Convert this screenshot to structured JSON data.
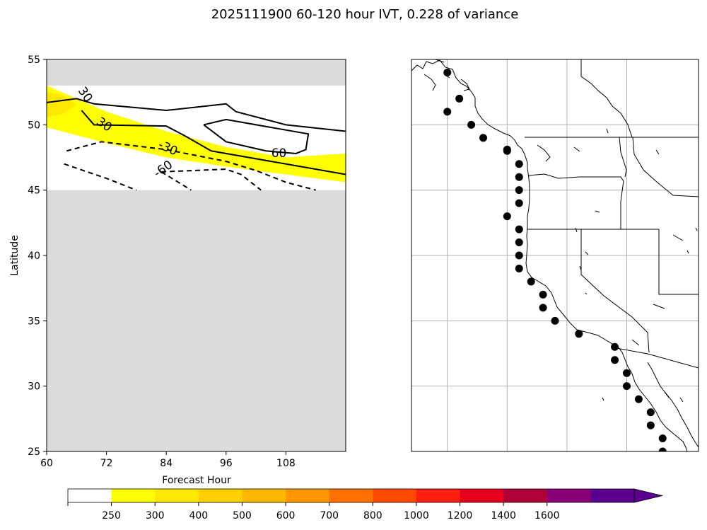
{
  "title": "2025111900 60-120 hour IVT, 0.228 of variance",
  "chart_data": [
    {
      "type": "contour",
      "xlabel": "Forecast Hour",
      "ylabel": "Latitude",
      "xlim": [
        60,
        120
      ],
      "ylim": [
        25,
        55
      ],
      "xticks": [
        60,
        72,
        84,
        96,
        108
      ],
      "yticks": [
        25,
        30,
        35,
        40,
        45,
        50,
        55
      ],
      "valid_lat_range": [
        45,
        53
      ],
      "missing_color": "#dcdcdc",
      "fill_levels": [
        {
          "level": 250,
          "band": [
            [
              60,
              53
            ],
            [
              72,
              51
            ],
            [
              84,
              49.5
            ],
            [
              96,
              48.3
            ],
            [
              108,
              47.5
            ],
            [
              120,
              47.8
            ],
            [
              120,
              45.6
            ],
            [
              108,
              46.2
            ],
            [
              96,
              46.8
            ],
            [
              84,
              47.5
            ],
            [
              72,
              48.6
            ],
            [
              60,
              49.8
            ]
          ]
        },
        {
          "level": 300,
          "band": [
            [
              60,
              52.5
            ],
            [
              63,
              52.3
            ],
            [
              66,
              51.5
            ],
            [
              63,
              50.8
            ],
            [
              60,
              50.6
            ]
          ]
        }
      ],
      "contours": [
        {
          "level": 30,
          "label": "30",
          "style": "solid",
          "points": [
            [
              60,
              51.7
            ],
            [
              66,
              52
            ],
            [
              69.5,
              51.6
            ],
            [
              84,
              51.1
            ],
            [
              96,
              51.6
            ],
            [
              98,
              51
            ],
            [
              108,
              50
            ],
            [
              120,
              49.5
            ]
          ]
        },
        {
          "level": 30,
          "style": "solid",
          "points": [
            [
              67,
              51.1
            ],
            [
              69.5,
              50
            ],
            [
              84,
              49.9
            ],
            [
              88,
              49.1
            ],
            [
              93,
              48
            ]
          ]
        },
        {
          "level": 60,
          "label": "60",
          "style": "solid",
          "points": [
            [
              93,
              48
            ],
            [
              120,
              46.2
            ]
          ]
        },
        {
          "level": 60,
          "style": "solid",
          "points": [
            [
              91.5,
              50
            ],
            [
              96,
              50.4
            ],
            [
              112.5,
              49.3
            ],
            [
              112,
              48.1
            ],
            [
              110,
              47.8
            ],
            [
              104,
              48
            ],
            [
              96,
              48.7
            ],
            [
              91.5,
              50
            ]
          ]
        },
        {
          "level": -30,
          "label": "-30",
          "style": "dashed",
          "points": [
            [
              64,
              48
            ],
            [
              71,
              48.7
            ],
            [
              84,
              48.1
            ],
            [
              96,
              47.2
            ],
            [
              102,
              46.5
            ],
            [
              108,
              45.6
            ],
            [
              114,
              45
            ]
          ]
        },
        {
          "level": -60,
          "label": "-60",
          "style": "dashed",
          "points": [
            [
              63.5,
              47
            ],
            [
              72,
              45.9
            ],
            [
              78,
              45
            ]
          ]
        },
        {
          "level": -60,
          "style": "dashed",
          "points": [
            [
              83,
              46.4
            ],
            [
              96,
              46.6
            ],
            [
              99,
              46.2
            ],
            [
              103,
              45
            ]
          ]
        },
        {
          "level": -60,
          "style": "dashed",
          "points": [
            [
              83,
              46.4
            ],
            [
              89,
              45
            ]
          ]
        }
      ],
      "contour_labels": [
        {
          "text": "30",
          "x": 67.7,
          "y": 52.3,
          "rotation": 55
        },
        {
          "text": "30",
          "x": 71.5,
          "y": 50.0,
          "rotation": 35
        },
        {
          "text": "-30",
          "x": 84.3,
          "y": 48.2,
          "rotation": 25
        },
        {
          "text": "60",
          "x": 106.6,
          "y": 47.8,
          "rotation": 0
        },
        {
          "text": "-60",
          "x": 83.4,
          "y": 46.6,
          "rotation": -35
        }
      ]
    },
    {
      "type": "map",
      "region": "US West Coast",
      "lon_range": [
        -135,
        -111
      ],
      "lat_range": [
        25,
        55
      ],
      "gridlines_lon": [
        -132,
        -127,
        -122,
        -117
      ],
      "gridlines_lat": [
        30,
        35,
        40,
        45,
        50
      ],
      "points": [
        [
          -132,
          54
        ],
        [
          -131,
          52
        ],
        [
          -132,
          51
        ],
        [
          -130,
          50
        ],
        [
          -129,
          49
        ],
        [
          -127,
          48
        ],
        [
          -127,
          48.1
        ],
        [
          -126,
          47
        ],
        [
          -126,
          46
        ],
        [
          -126,
          45
        ],
        [
          -126,
          44
        ],
        [
          -127,
          43
        ],
        [
          -126,
          42
        ],
        [
          -126,
          41
        ],
        [
          -126,
          40
        ],
        [
          -126,
          39
        ],
        [
          -125,
          38
        ],
        [
          -124,
          37
        ],
        [
          -124,
          36
        ],
        [
          -123,
          35
        ],
        [
          -121,
          34
        ],
        [
          -118,
          33
        ],
        [
          -118,
          32
        ],
        [
          -117,
          31
        ],
        [
          -117,
          30
        ],
        [
          -116,
          29
        ],
        [
          -115,
          28
        ],
        [
          -115,
          27
        ],
        [
          -114,
          26
        ],
        [
          -114,
          25
        ]
      ]
    },
    {
      "type": "colorbar",
      "tick_labels": [
        "250",
        "300",
        "400",
        "500",
        "600",
        "700",
        "800",
        "1000",
        "1200",
        "1400",
        "1600"
      ],
      "colors": [
        "#ffffff",
        "#ffff00",
        "#ffe800",
        "#ffd000",
        "#ffb800",
        "#ff9800",
        "#ff7000",
        "#ff4800",
        "#ff1e10",
        "#e6001e",
        "#b00038",
        "#880078",
        "#5c0090"
      ],
      "extend": "max"
    }
  ]
}
